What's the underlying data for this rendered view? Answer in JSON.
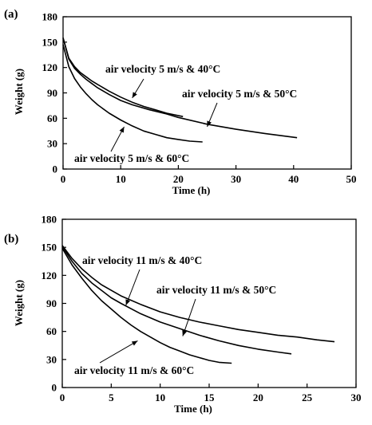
{
  "chart_data": [
    {
      "type": "line",
      "panel_label": "(a)",
      "xlabel": "Time (h)",
      "ylabel": "Weight (g)",
      "xlim": [
        0,
        50
      ],
      "ylim": [
        0,
        180
      ],
      "xticks": [
        0,
        10,
        20,
        30,
        40,
        50
      ],
      "yticks": [
        0,
        30,
        60,
        90,
        120,
        150,
        180
      ],
      "grid": false,
      "legend": "none",
      "series": [
        {
          "name": "air velocity 5 m/s & 40°C",
          "x": [
            0,
            1,
            2,
            3,
            4,
            5,
            6,
            8,
            10,
            12,
            14,
            16,
            18,
            20.8
          ],
          "y": [
            155,
            131,
            121,
            114,
            109,
            104,
            100,
            92,
            85,
            79,
            74,
            70,
            66,
            62
          ]
        },
        {
          "name": "air velocity 5 m/s & 50°C",
          "x": [
            0,
            1,
            2,
            3,
            4,
            5,
            6,
            8,
            10,
            12,
            15,
            18,
            20,
            25,
            30,
            35,
            40.6
          ],
          "y": [
            155,
            130,
            119,
            112,
            106,
            101,
            96,
            88,
            81,
            76,
            70,
            65,
            61,
            53,
            47,
            42,
            37
          ]
        },
        {
          "name": "air velocity 5 m/s & 60°C",
          "x": [
            0,
            1,
            2,
            3,
            4,
            5,
            6,
            8,
            10,
            12,
            14,
            16,
            18,
            20,
            22,
            24.2
          ],
          "y": [
            147,
            121,
            107,
            97,
            89,
            82,
            76,
            66,
            58,
            51,
            45,
            41,
            37,
            35,
            33,
            32
          ]
        }
      ],
      "annotations": [
        {
          "text": "air velocity 5 m/s & 40°C",
          "arrow_to": [
            12,
            84
          ]
        },
        {
          "text": "air velocity 5 m/s & 50°C",
          "arrow_to": [
            25,
            50
          ]
        },
        {
          "text": "air velocity 5 m/s & 60°C",
          "arrow_to": [
            10.6,
            50
          ]
        }
      ]
    },
    {
      "type": "line",
      "panel_label": "(b)",
      "xlabel": "Time (h)",
      "ylabel": "Weight (g)",
      "xlim": [
        0,
        30
      ],
      "ylim": [
        0,
        180
      ],
      "xticks": [
        0,
        5,
        10,
        15,
        20,
        25,
        30
      ],
      "yticks": [
        0,
        30,
        60,
        90,
        120,
        150,
        180
      ],
      "grid": false,
      "legend": "none",
      "series": [
        {
          "name": "air velocity 11 m/s & 40°C",
          "x": [
            0,
            1,
            2,
            3,
            4,
            5,
            6,
            8,
            10,
            12,
            14,
            16,
            18,
            20,
            22,
            24,
            26,
            27.8
          ],
          "y": [
            152,
            138,
            127,
            118,
            110,
            104,
            98,
            89,
            81,
            75,
            70,
            66,
            62,
            59,
            56,
            54,
            51,
            49
          ]
        },
        {
          "name": "air velocity 11 m/s & 50°C",
          "x": [
            0,
            1,
            2,
            3,
            4,
            5,
            6,
            8,
            10,
            12,
            14,
            16,
            18,
            20,
            22,
            23.4
          ],
          "y": [
            151,
            135,
            122,
            112,
            104,
            96,
            90,
            79,
            70,
            63,
            56,
            50,
            45,
            41,
            38,
            36
          ]
        },
        {
          "name": "air velocity 11 m/s & 60°C",
          "x": [
            0,
            1,
            2,
            3,
            4,
            5,
            6,
            7,
            8,
            9,
            10,
            11,
            12,
            13,
            14,
            15,
            16,
            17.3
          ],
          "y": [
            149,
            131,
            117,
            104,
            93,
            84,
            75,
            67,
            60,
            54,
            48,
            43,
            39,
            35,
            32,
            29,
            27,
            26
          ]
        }
      ],
      "annotations": [
        {
          "text": "air velocity 11 m/s & 40°C",
          "arrow_to": [
            6.5,
            88
          ]
        },
        {
          "text": "air velocity 11 m/s & 50°C",
          "arrow_to": [
            12.3,
            55
          ]
        },
        {
          "text": "air velocity 11 m/s & 60°C",
          "arrow_to": [
            7.7,
            50
          ]
        }
      ]
    }
  ]
}
